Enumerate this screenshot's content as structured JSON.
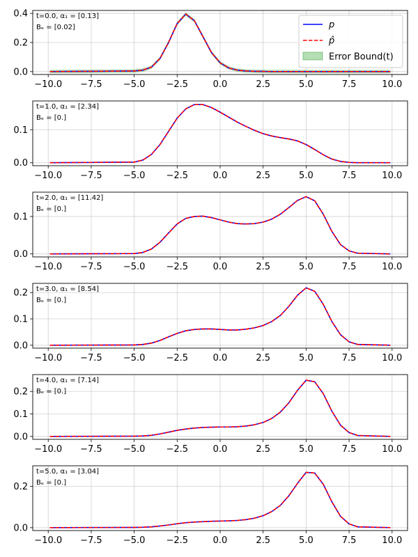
{
  "chart_data": [
    {
      "type": "line",
      "annotation_line1": "t=0.0, α₁ = [0.13]",
      "annotation_line2": "Bₑ = [0.02]",
      "xlim": [
        -10.9,
        10.9
      ],
      "ylim": [
        -0.02,
        0.42
      ],
      "xticks": [
        -10.0,
        -7.5,
        -5.0,
        -2.5,
        0.0,
        2.5,
        5.0,
        7.5,
        10.0
      ],
      "xtick_labels": [
        "−10.0",
        "−7.5",
        "−5.0",
        "−2.5",
        "0.0",
        "2.5",
        "5.0",
        "7.5",
        "10.0"
      ],
      "yticks": [
        0.0,
        0.2,
        0.4
      ],
      "ytick_labels": [
        "0.0",
        "0.2",
        "0.4"
      ],
      "grid": true,
      "legend": {
        "placement": "upper-right",
        "entries": [
          {
            "label": "p",
            "style": "solid",
            "color": "#0000ff"
          },
          {
            "label": "p̂",
            "style": "dashed",
            "color": "#ff0000"
          },
          {
            "label": "Error Bound(t)",
            "style": "fill",
            "color": "#2ca02c"
          }
        ]
      },
      "series": [
        {
          "name": "p",
          "style": "solid",
          "color": "#0000ff",
          "x": [
            -9.9,
            -5.0,
            -4.5,
            -4.0,
            -3.5,
            -3.0,
            -2.5,
            -2.0,
            -1.5,
            -1.0,
            -0.5,
            0.0,
            0.5,
            1.0,
            1.5,
            2.0,
            2.5,
            3.0,
            4.0,
            6.0,
            9.9
          ],
          "y": [
            0.0,
            0.004,
            0.01,
            0.03,
            0.09,
            0.2,
            0.33,
            0.395,
            0.35,
            0.24,
            0.13,
            0.06,
            0.025,
            0.01,
            0.004,
            0.002,
            0.001,
            0.0,
            0.0,
            0.0,
            0.0
          ]
        },
        {
          "name": "p̂",
          "style": "dashed",
          "color": "#ff0000",
          "x": [
            -9.9,
            -5.0,
            -4.5,
            -4.0,
            -3.5,
            -3.0,
            -2.5,
            -2.0,
            -1.5,
            -1.0,
            -0.5,
            0.0,
            0.5,
            1.0,
            1.5,
            2.0,
            2.5,
            3.0,
            4.0,
            6.0,
            9.9
          ],
          "y": [
            0.0,
            0.004,
            0.01,
            0.03,
            0.09,
            0.2,
            0.33,
            0.395,
            0.35,
            0.24,
            0.13,
            0.06,
            0.025,
            0.01,
            0.004,
            0.002,
            0.001,
            0.0,
            0.0,
            0.0,
            0.0
          ]
        }
      ],
      "error_bound_halfwidth": 0.012
    },
    {
      "type": "line",
      "annotation_line1": "t=1.0, α₁ = [2.34]",
      "annotation_line2": "Bₑ = [0.]",
      "xlim": [
        -10.9,
        10.9
      ],
      "ylim": [
        -0.009,
        0.187
      ],
      "xticks": [
        -10.0,
        -7.5,
        -5.0,
        -2.5,
        0.0,
        2.5,
        5.0,
        7.5,
        10.0
      ],
      "xtick_labels": [
        "−10.0",
        "−7.5",
        "−5.0",
        "−2.5",
        "0.0",
        "2.5",
        "5.0",
        "7.5",
        "10.0"
      ],
      "yticks": [
        0.0,
        0.1
      ],
      "ytick_labels": [
        "0.0",
        "0.1"
      ],
      "grid": true,
      "series": [
        {
          "name": "p",
          "style": "solid",
          "color": "#0000ff",
          "x": [
            -9.9,
            -5.0,
            -4.5,
            -4.0,
            -3.5,
            -3.0,
            -2.5,
            -2.0,
            -1.5,
            -1.0,
            -0.5,
            0.0,
            0.5,
            1.0,
            1.5,
            2.0,
            2.5,
            3.0,
            3.5,
            4.0,
            4.5,
            5.0,
            5.5,
            6.0,
            6.5,
            7.0,
            7.5,
            8.0,
            9.9
          ],
          "y": [
            0.0,
            0.002,
            0.008,
            0.025,
            0.055,
            0.095,
            0.135,
            0.163,
            0.176,
            0.176,
            0.167,
            0.153,
            0.138,
            0.123,
            0.11,
            0.098,
            0.088,
            0.081,
            0.076,
            0.072,
            0.066,
            0.055,
            0.04,
            0.024,
            0.011,
            0.004,
            0.001,
            0.0,
            0.0
          ]
        },
        {
          "name": "p̂",
          "style": "dashed",
          "color": "#ff0000",
          "x": [
            -9.9,
            -5.0,
            -4.5,
            -4.0,
            -3.5,
            -3.0,
            -2.5,
            -2.0,
            -1.5,
            -1.0,
            -0.5,
            0.0,
            0.5,
            1.0,
            1.5,
            2.0,
            2.5,
            3.0,
            3.5,
            4.0,
            4.5,
            5.0,
            5.5,
            6.0,
            6.5,
            7.0,
            7.5,
            8.0,
            9.9
          ],
          "y": [
            0.0,
            0.002,
            0.008,
            0.025,
            0.055,
            0.095,
            0.135,
            0.163,
            0.176,
            0.176,
            0.167,
            0.153,
            0.138,
            0.123,
            0.11,
            0.098,
            0.088,
            0.081,
            0.076,
            0.072,
            0.066,
            0.055,
            0.04,
            0.024,
            0.011,
            0.004,
            0.001,
            0.0,
            0.0
          ]
        }
      ]
    },
    {
      "type": "line",
      "annotation_line1": "t=2.0, α₁ = [11.42]",
      "annotation_line2": "Bₑ = [0.]",
      "xlim": [
        -10.9,
        10.9
      ],
      "ylim": [
        -0.008,
        0.165
      ],
      "xticks": [
        -10.0,
        -7.5,
        -5.0,
        -2.5,
        0.0,
        2.5,
        5.0,
        7.5,
        10.0
      ],
      "xtick_labels": [
        "−10.0",
        "−7.5",
        "−5.0",
        "−2.5",
        "0.0",
        "2.5",
        "5.0",
        "7.5",
        "10.0"
      ],
      "yticks": [
        0.0,
        0.1
      ],
      "ytick_labels": [
        "0.0",
        "0.1"
      ],
      "grid": true,
      "series": [
        {
          "name": "p",
          "style": "solid",
          "color": "#0000ff",
          "x": [
            -9.9,
            -5.0,
            -4.5,
            -4.0,
            -3.5,
            -3.0,
            -2.5,
            -2.0,
            -1.5,
            -1.0,
            -0.5,
            0.0,
            0.5,
            1.0,
            1.5,
            2.0,
            2.5,
            3.0,
            3.5,
            4.0,
            4.5,
            5.0,
            5.5,
            6.0,
            6.5,
            7.0,
            7.5,
            8.0,
            9.9
          ],
          "y": [
            0.0,
            0.001,
            0.004,
            0.013,
            0.031,
            0.056,
            0.08,
            0.095,
            0.1,
            0.101,
            0.097,
            0.091,
            0.085,
            0.081,
            0.08,
            0.081,
            0.085,
            0.093,
            0.106,
            0.124,
            0.143,
            0.153,
            0.142,
            0.106,
            0.06,
            0.025,
            0.008,
            0.002,
            0.0
          ]
        },
        {
          "name": "p̂",
          "style": "dashed",
          "color": "#ff0000",
          "x": [
            -9.9,
            -5.0,
            -4.5,
            -4.0,
            -3.5,
            -3.0,
            -2.5,
            -2.0,
            -1.5,
            -1.0,
            -0.5,
            0.0,
            0.5,
            1.0,
            1.5,
            2.0,
            2.5,
            3.0,
            3.5,
            4.0,
            4.5,
            5.0,
            5.5,
            6.0,
            6.5,
            7.0,
            7.5,
            8.0,
            9.9
          ],
          "y": [
            0.0,
            0.001,
            0.004,
            0.013,
            0.031,
            0.056,
            0.08,
            0.095,
            0.1,
            0.101,
            0.097,
            0.091,
            0.085,
            0.081,
            0.08,
            0.081,
            0.085,
            0.093,
            0.106,
            0.124,
            0.143,
            0.153,
            0.142,
            0.106,
            0.06,
            0.025,
            0.008,
            0.002,
            0.0
          ]
        }
      ]
    },
    {
      "type": "line",
      "annotation_line1": "t=3.0, α₁ = [8.54]",
      "annotation_line2": "Bₑ = [0.]",
      "xlim": [
        -10.9,
        10.9
      ],
      "ylim": [
        -0.011,
        0.235
      ],
      "xticks": [
        -10.0,
        -7.5,
        -5.0,
        -2.5,
        0.0,
        2.5,
        5.0,
        7.5,
        10.0
      ],
      "xtick_labels": [
        "−10.0",
        "−7.5",
        "−5.0",
        "−2.5",
        "0.0",
        "2.5",
        "5.0",
        "7.5",
        "10.0"
      ],
      "yticks": [
        0.0,
        0.1,
        0.2
      ],
      "ytick_labels": [
        "0.0",
        "0.1",
        "0.2"
      ],
      "grid": true,
      "series": [
        {
          "name": "p",
          "style": "solid",
          "color": "#0000ff",
          "x": [
            -9.9,
            -5.0,
            -4.5,
            -4.0,
            -3.5,
            -3.0,
            -2.5,
            -2.0,
            -1.5,
            -1.0,
            -0.5,
            0.0,
            0.5,
            1.0,
            1.5,
            2.0,
            2.5,
            3.0,
            3.5,
            4.0,
            4.5,
            5.0,
            5.5,
            6.0,
            6.5,
            7.0,
            7.5,
            8.0,
            9.9
          ],
          "y": [
            0.0,
            0.001,
            0.003,
            0.008,
            0.018,
            0.032,
            0.045,
            0.055,
            0.06,
            0.062,
            0.062,
            0.06,
            0.058,
            0.058,
            0.061,
            0.066,
            0.075,
            0.09,
            0.113,
            0.148,
            0.19,
            0.218,
            0.205,
            0.155,
            0.09,
            0.04,
            0.013,
            0.003,
            0.0
          ]
        },
        {
          "name": "p̂",
          "style": "dashed",
          "color": "#ff0000",
          "x": [
            -9.9,
            -5.0,
            -4.5,
            -4.0,
            -3.5,
            -3.0,
            -2.5,
            -2.0,
            -1.5,
            -1.0,
            -0.5,
            0.0,
            0.5,
            1.0,
            1.5,
            2.0,
            2.5,
            3.0,
            3.5,
            4.0,
            4.5,
            5.0,
            5.5,
            6.0,
            6.5,
            7.0,
            7.5,
            8.0,
            9.9
          ],
          "y": [
            0.0,
            0.001,
            0.003,
            0.008,
            0.018,
            0.032,
            0.045,
            0.055,
            0.06,
            0.062,
            0.062,
            0.06,
            0.058,
            0.058,
            0.061,
            0.066,
            0.075,
            0.09,
            0.113,
            0.148,
            0.19,
            0.218,
            0.205,
            0.155,
            0.09,
            0.04,
            0.013,
            0.003,
            0.0
          ]
        }
      ]
    },
    {
      "type": "line",
      "annotation_line1": "t=4.0, α₁ = [7.14]",
      "annotation_line2": "Bₑ = [0.]",
      "xlim": [
        -10.9,
        10.9
      ],
      "ylim": [
        -0.013,
        0.275
      ],
      "xticks": [
        -10.0,
        -7.5,
        -5.0,
        -2.5,
        0.0,
        2.5,
        5.0,
        7.5,
        10.0
      ],
      "xtick_labels": [
        "−10.0",
        "−7.5",
        "−5.0",
        "−2.5",
        "0.0",
        "2.5",
        "5.0",
        "7.5",
        "10.0"
      ],
      "yticks": [
        0.0,
        0.1,
        0.2
      ],
      "ytick_labels": [
        "0.0",
        "0.1",
        "0.2"
      ],
      "grid": true,
      "series": [
        {
          "name": "p",
          "style": "solid",
          "color": "#0000ff",
          "x": [
            -9.9,
            -5.0,
            -4.5,
            -4.0,
            -3.5,
            -3.0,
            -2.5,
            -2.0,
            -1.5,
            -1.0,
            -0.5,
            0.0,
            0.5,
            1.0,
            1.5,
            2.0,
            2.5,
            3.0,
            3.5,
            4.0,
            4.5,
            5.0,
            5.5,
            6.0,
            6.5,
            7.0,
            7.5,
            8.0,
            9.9
          ],
          "y": [
            0.0,
            0.001,
            0.002,
            0.005,
            0.011,
            0.019,
            0.027,
            0.033,
            0.037,
            0.04,
            0.041,
            0.042,
            0.042,
            0.043,
            0.046,
            0.052,
            0.062,
            0.08,
            0.108,
            0.15,
            0.205,
            0.25,
            0.243,
            0.19,
            0.112,
            0.05,
            0.017,
            0.004,
            0.0
          ]
        },
        {
          "name": "p̂",
          "style": "dashed",
          "color": "#ff0000",
          "x": [
            -9.9,
            -5.0,
            -4.5,
            -4.0,
            -3.5,
            -3.0,
            -2.5,
            -2.0,
            -1.5,
            -1.0,
            -0.5,
            0.0,
            0.5,
            1.0,
            1.5,
            2.0,
            2.5,
            3.0,
            3.5,
            4.0,
            4.5,
            5.0,
            5.5,
            6.0,
            6.5,
            7.0,
            7.5,
            8.0,
            9.9
          ],
          "y": [
            0.0,
            0.001,
            0.002,
            0.005,
            0.011,
            0.019,
            0.027,
            0.033,
            0.037,
            0.04,
            0.041,
            0.042,
            0.042,
            0.043,
            0.046,
            0.052,
            0.062,
            0.08,
            0.108,
            0.15,
            0.205,
            0.25,
            0.243,
            0.19,
            0.112,
            0.05,
            0.017,
            0.004,
            0.0
          ]
        }
      ]
    },
    {
      "type": "line",
      "annotation_line1": "t=5.0, α₁ = [3.04]",
      "annotation_line2": "Bₑ = [0.]",
      "xlim": [
        -10.9,
        10.9
      ],
      "ylim": [
        -0.014,
        0.3
      ],
      "xticks": [
        -10.0,
        -7.5,
        -5.0,
        -2.5,
        0.0,
        2.5,
        5.0,
        7.5,
        10.0
      ],
      "xtick_labels": [
        "−10.0",
        "−7.5",
        "−5.0",
        "−2.5",
        "0.0",
        "2.5",
        "5.0",
        "7.5",
        "10.0"
      ],
      "yticks": [
        0.0,
        0.2
      ],
      "ytick_labels": [
        "0.0",
        "0.2"
      ],
      "grid": true,
      "series": [
        {
          "name": "p",
          "style": "solid",
          "color": "#0000ff",
          "x": [
            -9.9,
            -5.0,
            -4.5,
            -4.0,
            -3.5,
            -3.0,
            -2.5,
            -2.0,
            -1.5,
            -1.0,
            -0.5,
            0.0,
            0.5,
            1.0,
            1.5,
            2.0,
            2.5,
            3.0,
            3.5,
            4.0,
            4.5,
            5.0,
            5.5,
            6.0,
            6.5,
            7.0,
            7.5,
            8.0,
            9.9
          ],
          "y": [
            0.0,
            0.001,
            0.002,
            0.004,
            0.008,
            0.013,
            0.019,
            0.024,
            0.027,
            0.029,
            0.031,
            0.032,
            0.033,
            0.035,
            0.039,
            0.046,
            0.058,
            0.078,
            0.108,
            0.155,
            0.215,
            0.268,
            0.265,
            0.21,
            0.125,
            0.055,
            0.018,
            0.004,
            0.0
          ]
        },
        {
          "name": "p̂",
          "style": "dashed",
          "color": "#ff0000",
          "x": [
            -9.9,
            -5.0,
            -4.5,
            -4.0,
            -3.5,
            -3.0,
            -2.5,
            -2.0,
            -1.5,
            -1.0,
            -0.5,
            0.0,
            0.5,
            1.0,
            1.5,
            2.0,
            2.5,
            3.0,
            3.5,
            4.0,
            4.5,
            5.0,
            5.5,
            6.0,
            6.5,
            7.0,
            7.5,
            8.0,
            9.9
          ],
          "y": [
            0.0,
            0.001,
            0.002,
            0.004,
            0.008,
            0.013,
            0.019,
            0.024,
            0.027,
            0.029,
            0.031,
            0.032,
            0.033,
            0.035,
            0.039,
            0.046,
            0.058,
            0.078,
            0.108,
            0.155,
            0.215,
            0.268,
            0.265,
            0.21,
            0.125,
            0.055,
            0.018,
            0.004,
            0.0
          ]
        }
      ]
    }
  ]
}
